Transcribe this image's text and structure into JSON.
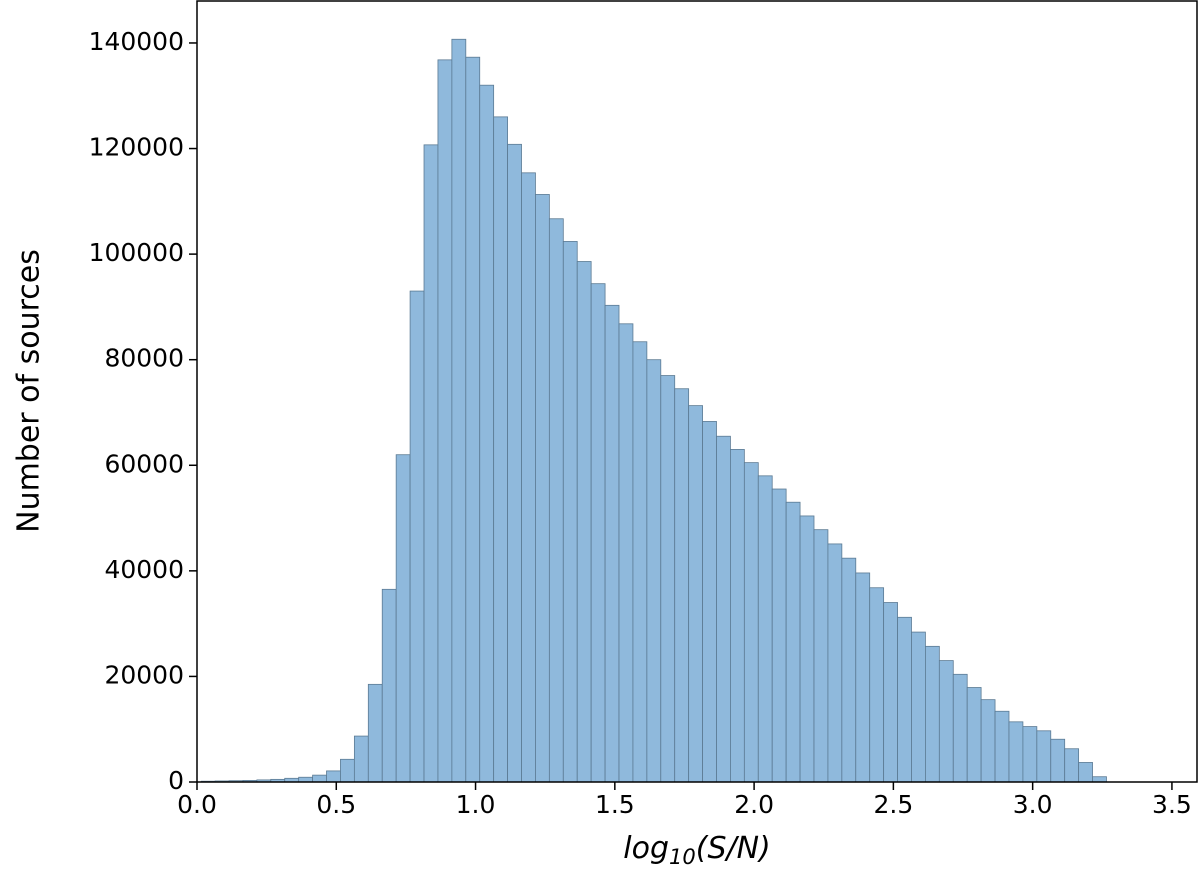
{
  "chart_data": {
    "type": "histogram",
    "ylabel": "Number of sources",
    "xlabel_parts": [
      "log",
      "10",
      "(S/N)"
    ],
    "color": "#8fb9dc",
    "edgecolor": "#5b7a93",
    "xlim": [
      0,
      3.59
    ],
    "ylim": [
      0,
      147950
    ],
    "xticks": [
      {
        "value": 0,
        "label": "0.0"
      },
      0.5,
      {
        "value": 1,
        "label": "1.0"
      },
      1.5,
      {
        "value": 2,
        "label": "2.0"
      },
      2.5,
      {
        "value": 3,
        "label": "3.0"
      },
      3.5
    ],
    "yticks": [
      0,
      20000,
      40000,
      60000,
      80000,
      100000,
      120000,
      140000
    ],
    "bins": [
      0.015,
      0.065,
      0.115,
      0.165,
      0.215,
      0.265,
      0.315,
      0.365,
      0.415,
      0.465,
      0.515,
      0.565,
      0.615,
      0.665,
      0.715,
      0.765,
      0.815,
      0.865,
      0.915,
      0.965,
      1.015,
      1.065,
      1.115,
      1.165,
      1.215,
      1.265,
      1.315,
      1.365,
      1.415,
      1.465,
      1.515,
      1.565,
      1.615,
      1.665,
      1.715,
      1.765,
      1.815,
      1.865,
      1.915,
      1.965,
      2.015,
      2.065,
      2.115,
      2.165,
      2.215,
      2.265,
      2.315,
      2.365,
      2.415,
      2.465,
      2.515,
      2.565,
      2.615,
      2.665,
      2.715,
      2.765,
      2.815,
      2.865,
      2.915,
      2.965,
      3.015,
      3.065,
      3.115,
      3.165,
      3.215,
      3.265
    ],
    "counts": [
      150,
      200,
      250,
      300,
      400,
      500,
      700,
      900,
      1300,
      2100,
      4300,
      8700,
      18500,
      36500,
      62000,
      93000,
      120700,
      136800,
      140700,
      137300,
      132000,
      126000,
      120800,
      115400,
      111300,
      106700,
      102400,
      98600,
      94400,
      90300,
      86800,
      83400,
      80000,
      77000,
      74500,
      71300,
      68300,
      65500,
      63000,
      60500,
      58000,
      55500,
      53000,
      50400,
      47800,
      45100,
      42400,
      39600,
      36800,
      34000,
      31200,
      28400,
      25700,
      23000,
      20400,
      17900,
      15600,
      13400,
      11400,
      10500,
      9700,
      8100,
      6300,
      3700,
      1000
    ]
  }
}
